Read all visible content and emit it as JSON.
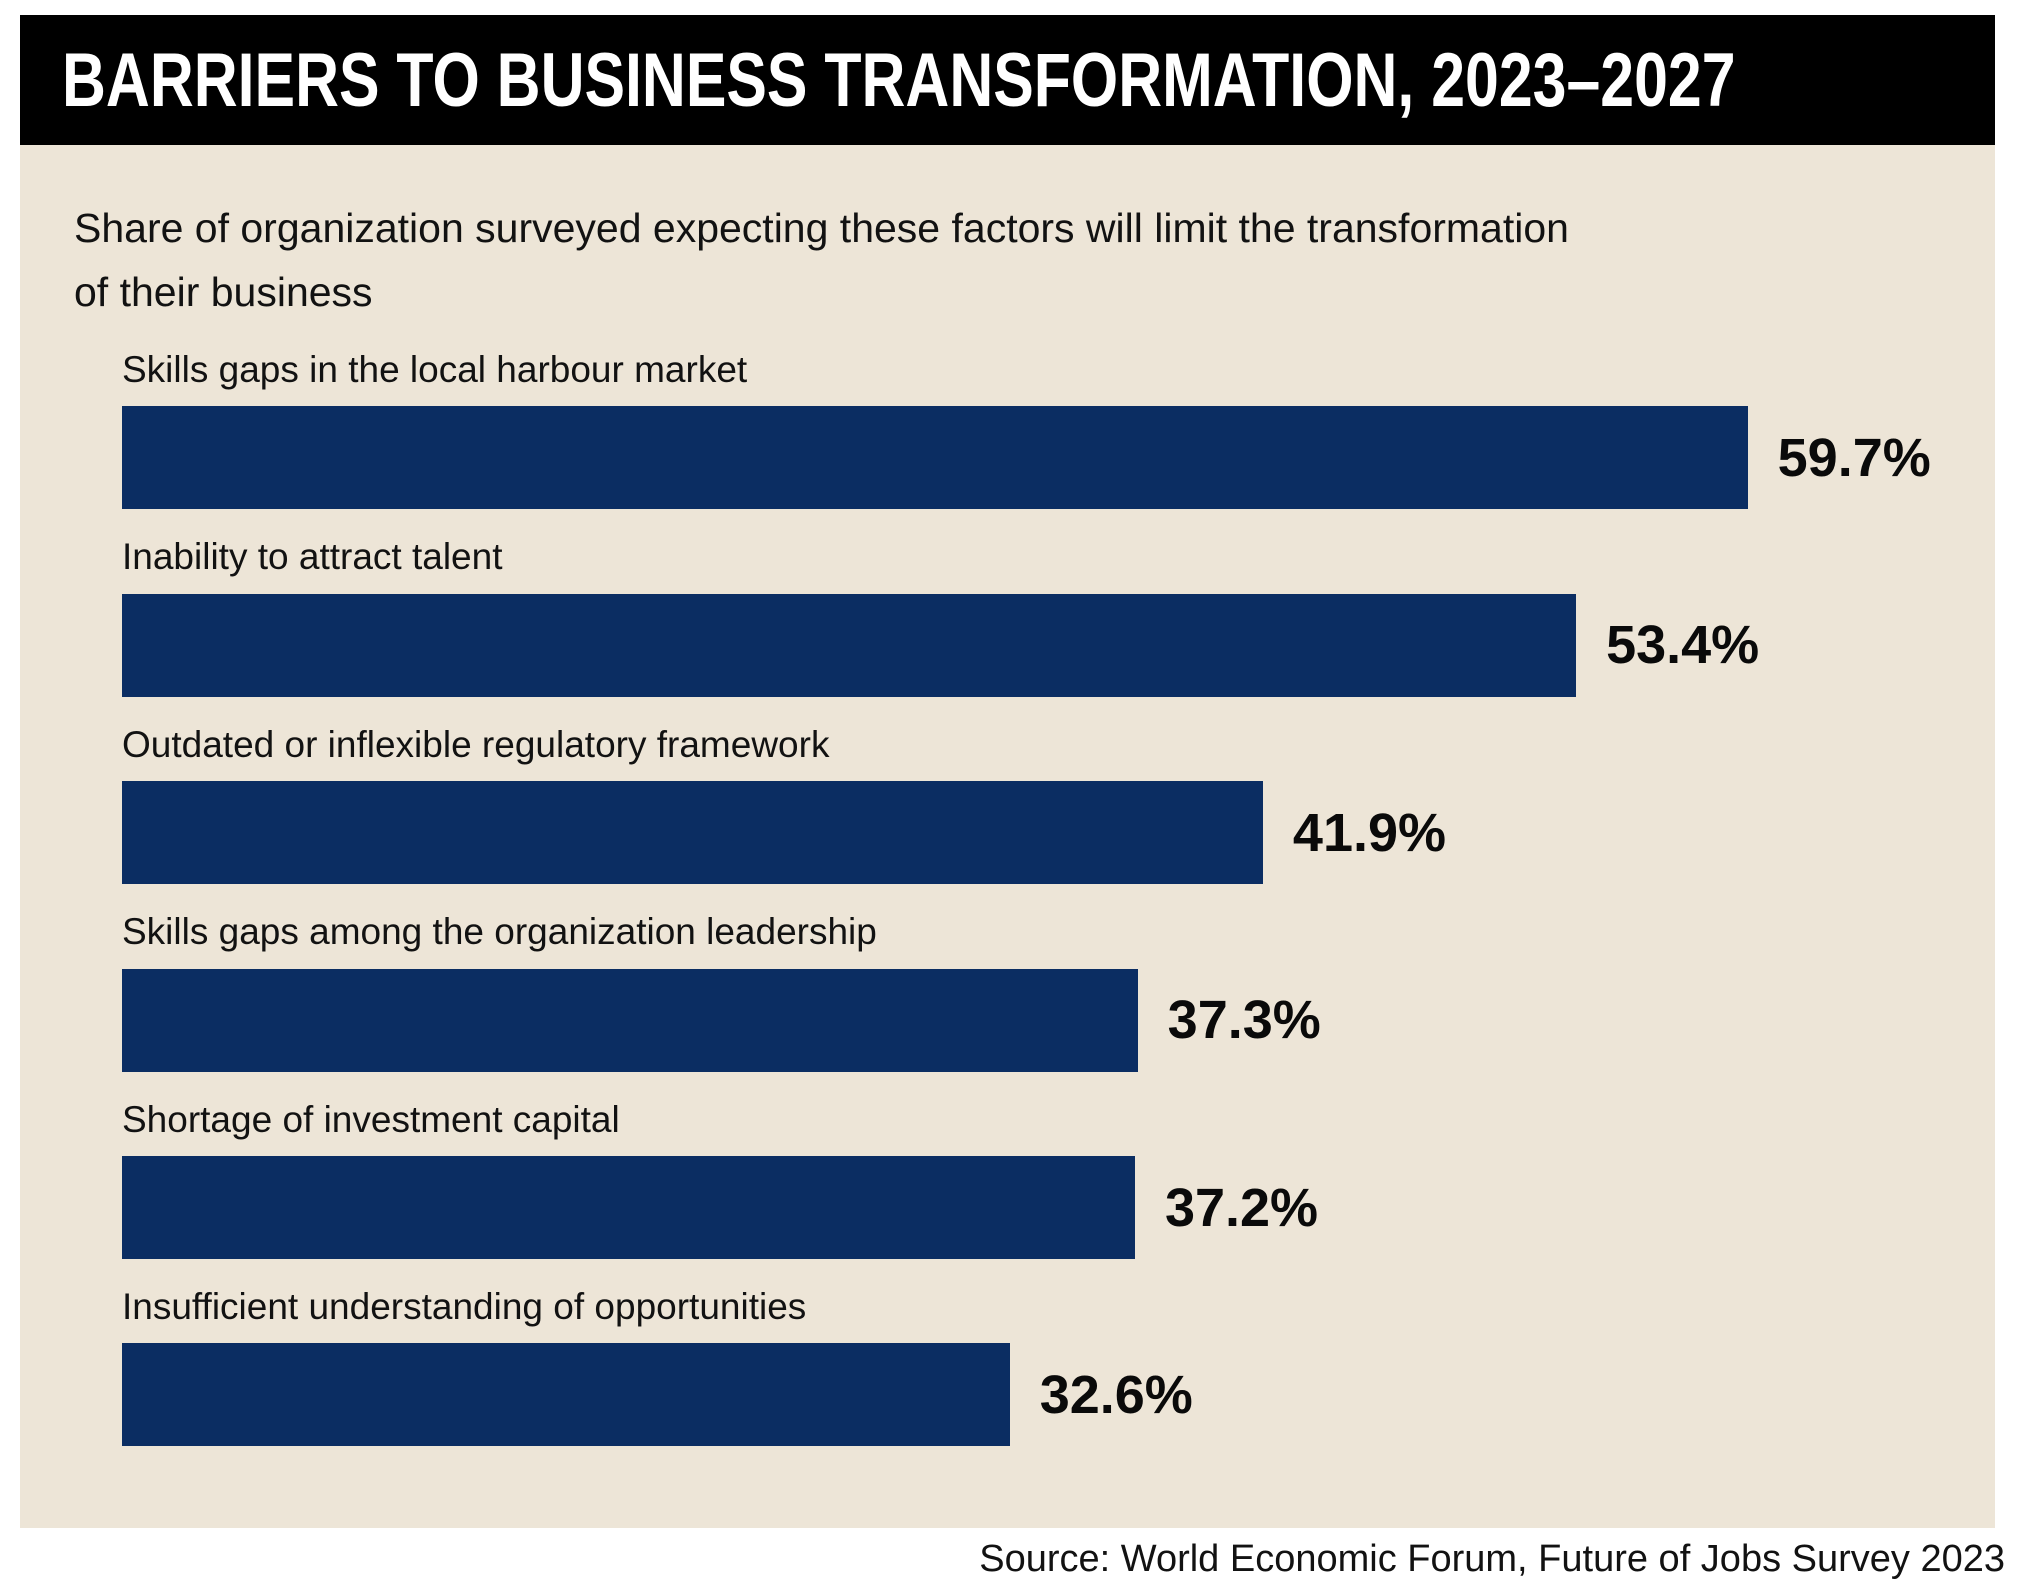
{
  "header": {
    "title": "BARRIERS TO BUSINESS TRANSFORMATION, 2023–2027"
  },
  "subtitle": {
    "line1": "Share of organization surveyed expecting these factors will limit the transformation",
    "line2": "of their business"
  },
  "source": "Source: World Economic Forum, Future of Jobs Survey 2023",
  "colors": {
    "bar": "#0b2d62",
    "panel_bg": "#ede5d7",
    "titlebar_bg": "#000000",
    "title_text": "#ffffff"
  },
  "chart_data": {
    "type": "bar",
    "orientation": "horizontal",
    "title": "BARRIERS TO BUSINESS TRANSFORMATION, 2023–2027",
    "subtitle": "Share of organization surveyed expecting these factors will limit the transformation of their business",
    "categories": [
      "Skills gaps in the local harbour market",
      "Inability to attract talent",
      "Outdated or inflexible regulatory framework",
      "Skills gaps among the organization leadership",
      "Shortage of investment capital",
      "Insufficient understanding of opportunities"
    ],
    "values": [
      59.7,
      53.4,
      41.9,
      37.3,
      37.2,
      32.6
    ],
    "value_labels": [
      "59.7%",
      "53.4%",
      "41.9%",
      "37.3%",
      "37.2%",
      "32.6%"
    ],
    "xlabel": "",
    "ylabel": "",
    "xlim": [
      0,
      62
    ],
    "grid": false,
    "legend": "none",
    "source": "Source: World Economic Forum, Future of Jobs Survey 2023"
  }
}
